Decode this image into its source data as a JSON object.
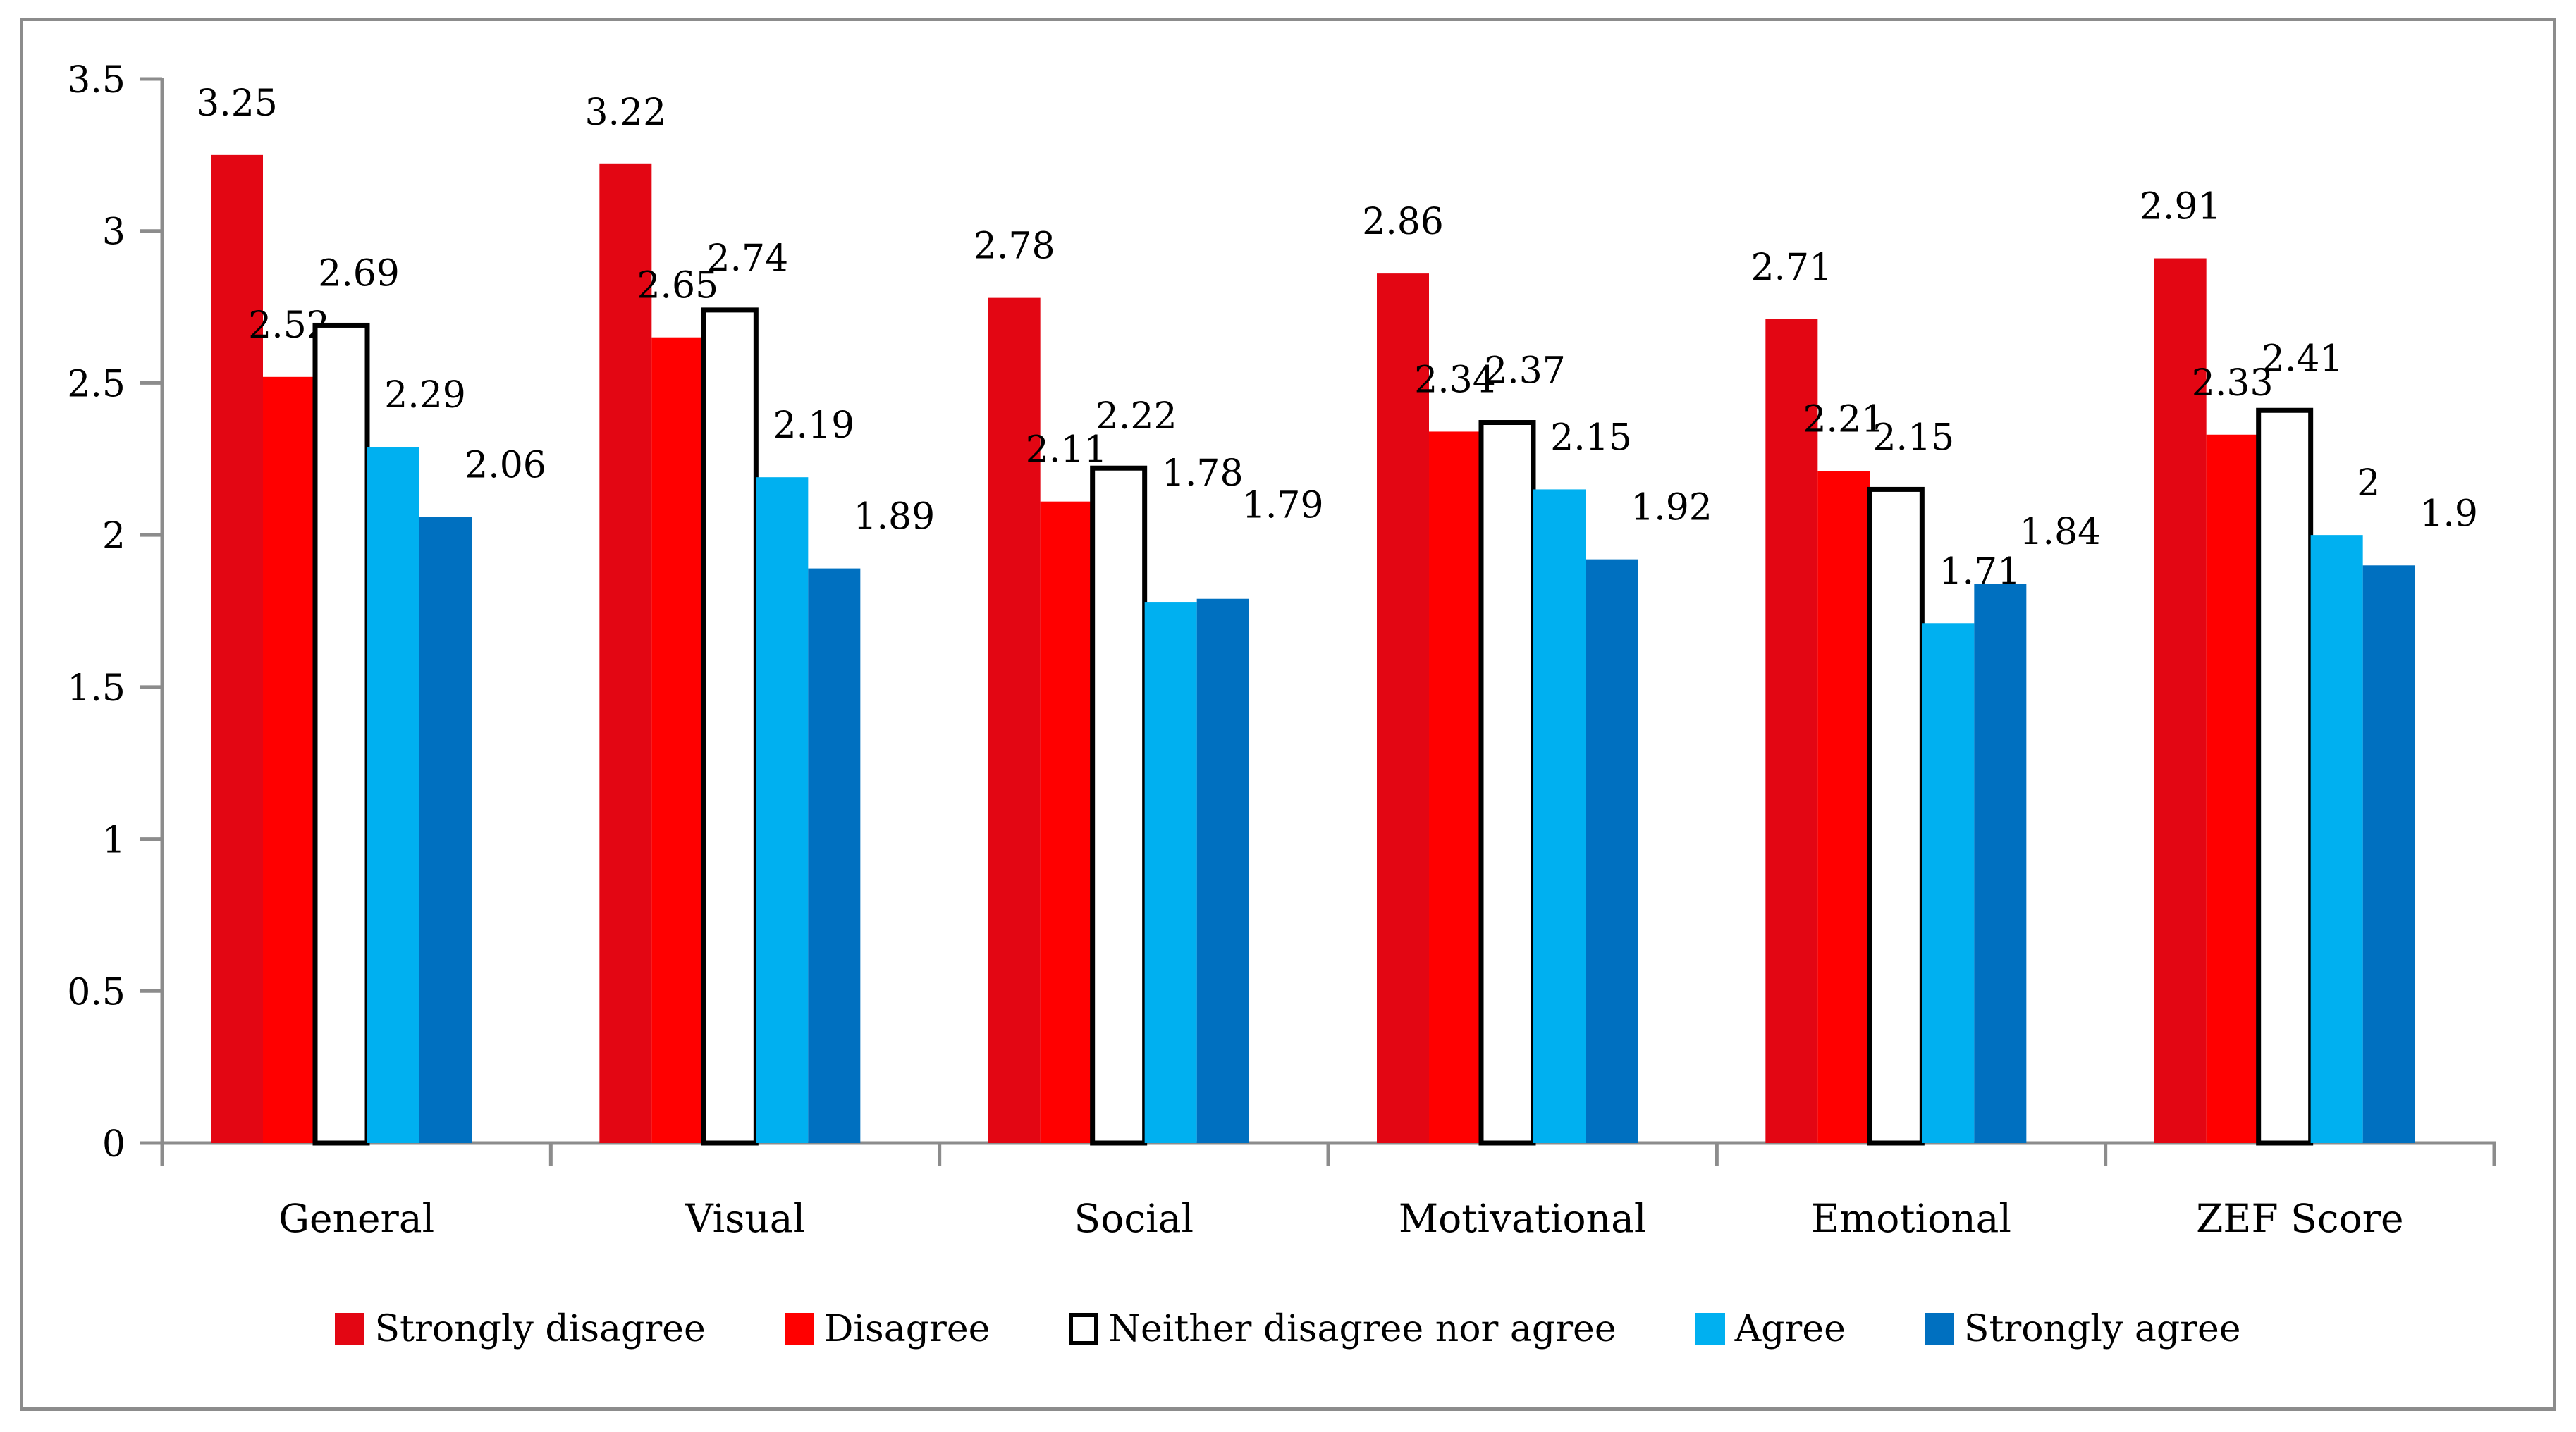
{
  "figure": {
    "background_color": "#FFFFFF",
    "border_color": "#8C8C8C",
    "axis_color": "#8C8C8C",
    "text_color": "#000000"
  },
  "chart_data": {
    "type": "bar",
    "title": "",
    "xlabel": "",
    "ylabel": "",
    "categories": [
      "General",
      "Visual",
      "Social",
      "Motivational",
      "Emotional",
      "ZEF Score"
    ],
    "series": [
      {
        "name": "Strongly disagree",
        "color": "#E30613",
        "values": [
          3.25,
          3.22,
          2.78,
          2.86,
          2.71,
          2.91
        ]
      },
      {
        "name": "Disagree",
        "color": "#FF0000",
        "values": [
          2.52,
          2.65,
          2.11,
          2.34,
          2.21,
          2.33
        ]
      },
      {
        "name": "Neither disagree nor agree",
        "color": "#FFFFFF",
        "border_color": "#000000",
        "values": [
          2.69,
          2.74,
          2.22,
          2.37,
          2.15,
          2.41
        ]
      },
      {
        "name": "Agree",
        "color": "#00B0F0",
        "values": [
          2.29,
          2.19,
          1.78,
          2.15,
          1.71,
          2
        ]
      },
      {
        "name": "Strongly agree",
        "color": "#0070C0",
        "values": [
          2.06,
          1.89,
          1.79,
          1.92,
          1.84,
          1.9
        ]
      }
    ],
    "y_axis": {
      "min": 0,
      "max": 3.5,
      "tick_step": 0.5,
      "tick_labels": [
        "3.5",
        "3",
        "2.5",
        "2",
        "1.5",
        "1",
        "0.5",
        "0"
      ]
    },
    "grid": false,
    "data_labels": "outside-end",
    "legend_position": "bottom"
  }
}
